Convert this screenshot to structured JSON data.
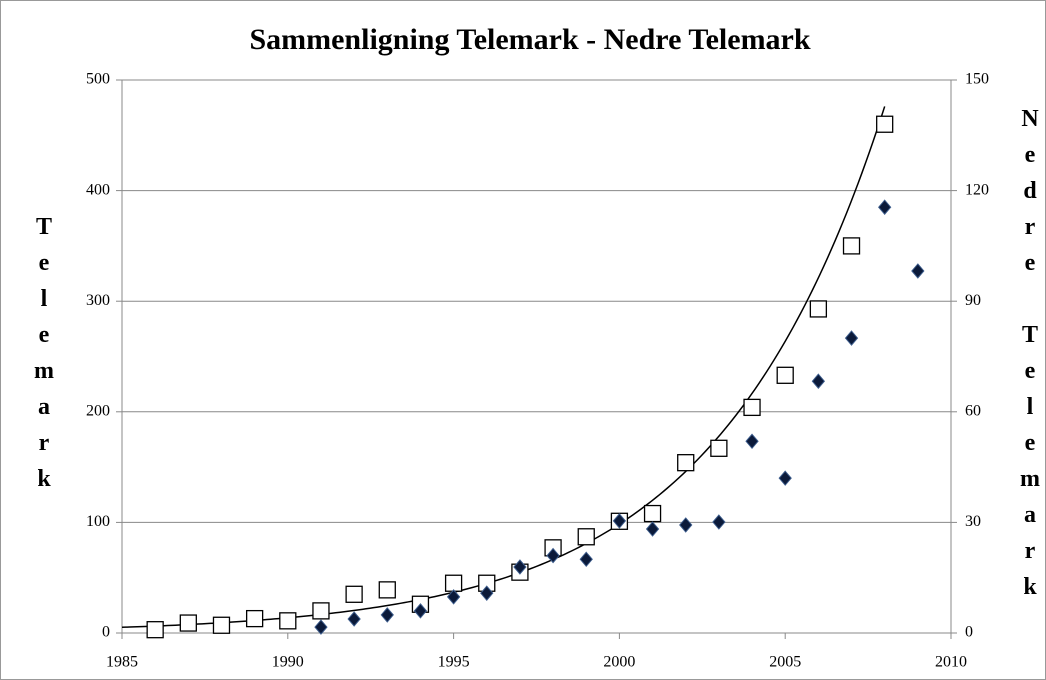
{
  "chart_data": {
    "type": "scatter",
    "title": "Sammenligning Telemark - Nedre Telemark",
    "ylabel": "Telemark",
    "y2label": "Nedre Telemark",
    "xlim": [
      1985,
      2010
    ],
    "xticks": [
      1985,
      1990,
      1995,
      2000,
      2005,
      2010
    ],
    "ylim": [
      0,
      500
    ],
    "yticks": [
      0,
      100,
      200,
      300,
      400,
      500
    ],
    "y2lim": [
      0,
      150
    ],
    "y2ticks": [
      0,
      30,
      60,
      90,
      120,
      150
    ],
    "grid": true,
    "trendline": {
      "type": "exponential",
      "series": 0,
      "color": "#000000"
    },
    "series": [
      {
        "marker": "square",
        "color": "#ffffff",
        "x": [
          1986,
          1987,
          1988,
          1989,
          1990,
          1991,
          1992,
          1993,
          1994,
          1995,
          1996,
          1997,
          1998,
          1999,
          2000,
          2001,
          2002,
          2003,
          2004,
          2005,
          2006,
          2007,
          2008
        ],
        "values": [
          3,
          9,
          7,
          13,
          11,
          20,
          35,
          39,
          26,
          45,
          45,
          55,
          77,
          87,
          101,
          108,
          154,
          167,
          204,
          233,
          293,
          350,
          460
        ]
      },
      {
        "marker": "diamond",
        "color": "#0b1a3a",
        "axis": "y2",
        "x": [
          1991,
          1992,
          1993,
          1994,
          1995,
          1996,
          1997,
          1998,
          1999,
          2000,
          2001,
          2002,
          2003,
          2004,
          2005,
          2006,
          2007,
          2008,
          2009
        ],
        "values": [
          1.6,
          3.8,
          4.9,
          6,
          9.8,
          10.8,
          17.9,
          21,
          20,
          30.4,
          28.2,
          29.3,
          30.1,
          52,
          42,
          68.3,
          80,
          115.5,
          98.2
        ]
      }
    ]
  }
}
